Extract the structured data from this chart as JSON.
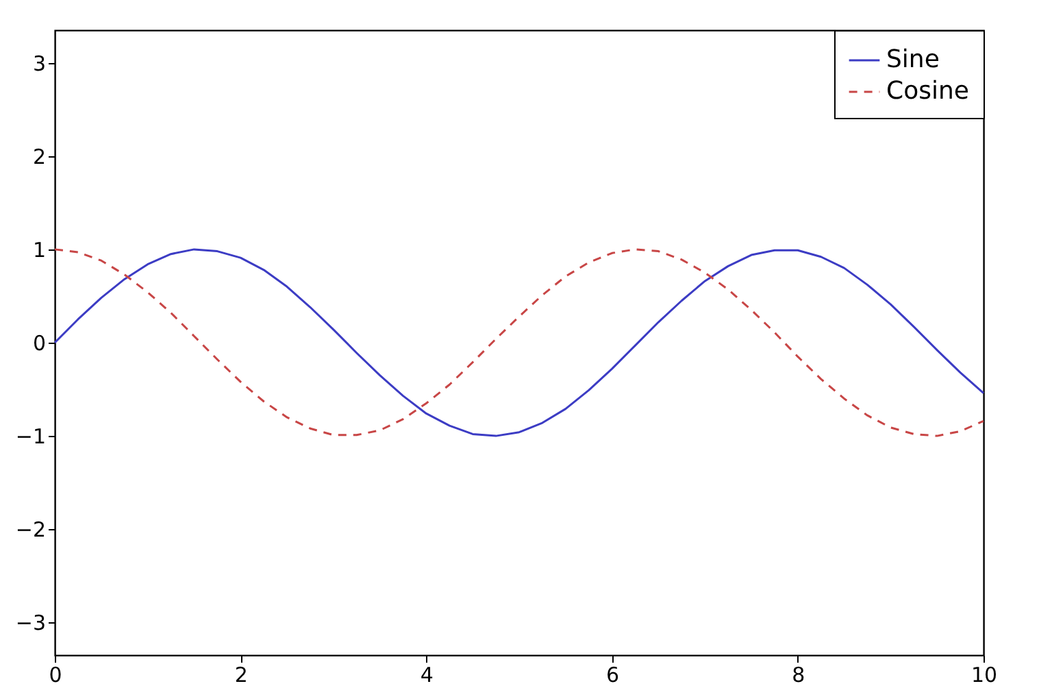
{
  "chart_data": {
    "type": "line",
    "x": [
      0,
      0.25,
      0.5,
      0.75,
      1,
      1.25,
      1.5,
      1.75,
      2,
      2.25,
      2.5,
      2.75,
      3,
      3.25,
      3.5,
      3.75,
      4,
      4.25,
      4.5,
      4.75,
      5,
      5.25,
      5.5,
      5.75,
      6,
      6.25,
      6.5,
      6.75,
      7,
      7.25,
      7.5,
      7.75,
      8,
      8.25,
      8.5,
      8.75,
      9,
      9.25,
      9.5,
      9.75,
      10
    ],
    "series": [
      {
        "name": "Sine",
        "color": "#3c3cc4",
        "line_style": "solid",
        "values": [
          0,
          0.25,
          0.48,
          0.68,
          0.84,
          0.95,
          1.0,
          0.98,
          0.91,
          0.78,
          0.6,
          0.38,
          0.14,
          -0.11,
          -0.35,
          -0.57,
          -0.76,
          -0.89,
          -0.98,
          -1.0,
          -0.96,
          -0.86,
          -0.71,
          -0.51,
          -0.28,
          -0.03,
          0.22,
          0.45,
          0.66,
          0.82,
          0.94,
          0.99,
          0.99,
          0.92,
          0.8,
          0.62,
          0.41,
          0.17,
          -0.08,
          -0.32,
          -0.54
        ]
      },
      {
        "name": "Cosine",
        "color": "#c84646",
        "line_style": "dashed",
        "values": [
          1,
          0.97,
          0.88,
          0.73,
          0.54,
          0.32,
          0.07,
          -0.18,
          -0.42,
          -0.63,
          -0.8,
          -0.92,
          -0.99,
          -0.99,
          -0.94,
          -0.82,
          -0.65,
          -0.45,
          -0.21,
          0.04,
          0.28,
          0.51,
          0.71,
          0.86,
          0.96,
          1.0,
          0.98,
          0.89,
          0.75,
          0.57,
          0.35,
          0.11,
          -0.15,
          -0.39,
          -0.6,
          -0.78,
          -0.91,
          -0.98,
          -1.0,
          -0.95,
          -0.84
        ]
      }
    ],
    "xlim": [
      0,
      10
    ],
    "xticks": [
      0,
      2,
      4,
      6,
      8,
      10
    ],
    "ylim": [
      -3.35,
      3.35
    ],
    "yticks": [
      {
        "value": -3,
        "label": "−3"
      },
      {
        "value": -2,
        "label": "−2"
      },
      {
        "value": -1,
        "label": "−1"
      },
      0,
      1,
      2,
      3
    ],
    "grid": false,
    "legend": "top right"
  }
}
